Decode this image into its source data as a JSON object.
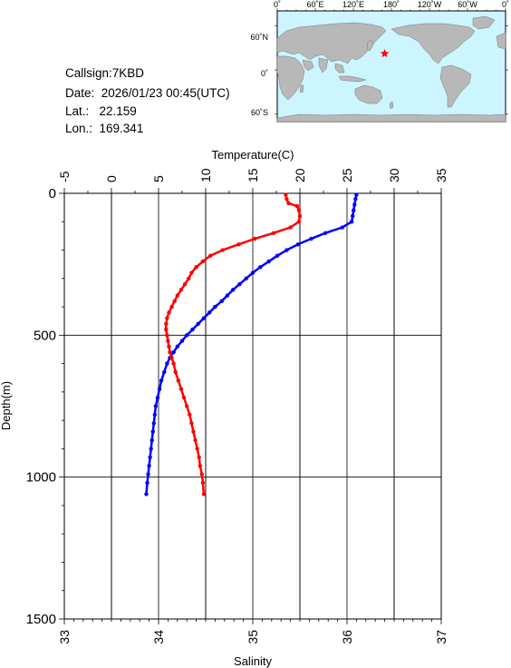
{
  "info": {
    "callsign": "Callsign:7KBD",
    "date": "Date:  2026/01/23 00:45(UTC)",
    "lat": "Lat.:   22.159",
    "lon": "Lon.:  169.341"
  },
  "map": {
    "top_ticks": [
      "0˚",
      "60˚E",
      "120˚E",
      "180˚",
      "120˚W",
      "60˚W",
      "0˚"
    ],
    "lat_ticks": [
      "60˚N",
      "0˚",
      "60˚S"
    ],
    "ocean_color": "#ccf5ff",
    "land_color": "#b8b8b8",
    "marker_color": "#ff0000",
    "marker": {
      "lon": 169.341,
      "lat": 22.159
    }
  },
  "chart_data": {
    "type": "line",
    "top_axis": {
      "label": "Temperature(C)",
      "ticks": [
        "-5",
        "0",
        "5",
        "10",
        "15",
        "20",
        "25",
        "30",
        "35"
      ],
      "range": [
        -5,
        35
      ]
    },
    "bottom_axis": {
      "label": "Salinity",
      "ticks": [
        "33",
        "34",
        "35",
        "36",
        "37"
      ],
      "range": [
        33,
        37
      ]
    },
    "y_axis": {
      "label": "Depth(m)",
      "ticks": [
        "0",
        "500",
        "1000",
        "1500"
      ],
      "range": [
        0,
        1500
      ],
      "inverted": true
    },
    "grid": true,
    "series": [
      {
        "name": "Temperature",
        "axis": "top",
        "color": "#0000ff",
        "points": [
          [
            26.0,
            5
          ],
          [
            25.9,
            20
          ],
          [
            25.8,
            40
          ],
          [
            25.7,
            60
          ],
          [
            25.6,
            80
          ],
          [
            25.5,
            100
          ],
          [
            24.5,
            120
          ],
          [
            22.7,
            140
          ],
          [
            21.2,
            160
          ],
          [
            19.8,
            180
          ],
          [
            18.6,
            200
          ],
          [
            17.6,
            220
          ],
          [
            16.7,
            240
          ],
          [
            15.8,
            260
          ],
          [
            15.0,
            280
          ],
          [
            14.3,
            300
          ],
          [
            13.6,
            320
          ],
          [
            12.9,
            340
          ],
          [
            12.3,
            360
          ],
          [
            11.7,
            380
          ],
          [
            11.0,
            400
          ],
          [
            10.4,
            420
          ],
          [
            9.8,
            440
          ],
          [
            9.2,
            460
          ],
          [
            8.6,
            480
          ],
          [
            8.0,
            500
          ],
          [
            7.5,
            520
          ],
          [
            7.0,
            540
          ],
          [
            6.6,
            560
          ],
          [
            6.2,
            580
          ],
          [
            5.9,
            600
          ],
          [
            5.6,
            630
          ],
          [
            5.3,
            660
          ],
          [
            5.1,
            690
          ],
          [
            4.9,
            720
          ],
          [
            4.7,
            750
          ],
          [
            4.6,
            780
          ],
          [
            4.5,
            810
          ],
          [
            4.4,
            840
          ],
          [
            4.3,
            870
          ],
          [
            4.2,
            900
          ],
          [
            4.1,
            930
          ],
          [
            4.0,
            960
          ],
          [
            3.9,
            990
          ],
          [
            3.8,
            1020
          ],
          [
            3.7,
            1060
          ]
        ]
      },
      {
        "name": "Salinity",
        "axis": "bottom",
        "color": "#ff0000",
        "points": [
          [
            35.35,
            5
          ],
          [
            35.36,
            20
          ],
          [
            35.38,
            35
          ],
          [
            35.47,
            45
          ],
          [
            35.49,
            60
          ],
          [
            35.5,
            80
          ],
          [
            35.49,
            100
          ],
          [
            35.4,
            120
          ],
          [
            35.22,
            140
          ],
          [
            35.02,
            160
          ],
          [
            34.85,
            180
          ],
          [
            34.68,
            200
          ],
          [
            34.55,
            220
          ],
          [
            34.47,
            240
          ],
          [
            34.4,
            260
          ],
          [
            34.35,
            280
          ],
          [
            34.32,
            300
          ],
          [
            34.28,
            320
          ],
          [
            34.24,
            340
          ],
          [
            34.2,
            360
          ],
          [
            34.17,
            380
          ],
          [
            34.14,
            400
          ],
          [
            34.11,
            420
          ],
          [
            34.09,
            440
          ],
          [
            34.08,
            460
          ],
          [
            34.08,
            480
          ],
          [
            34.09,
            500
          ],
          [
            34.1,
            520
          ],
          [
            34.11,
            540
          ],
          [
            34.12,
            560
          ],
          [
            34.14,
            580
          ],
          [
            34.16,
            600
          ],
          [
            34.18,
            630
          ],
          [
            34.21,
            660
          ],
          [
            34.24,
            690
          ],
          [
            34.27,
            720
          ],
          [
            34.3,
            750
          ],
          [
            34.33,
            780
          ],
          [
            34.35,
            810
          ],
          [
            34.37,
            840
          ],
          [
            34.39,
            870
          ],
          [
            34.41,
            900
          ],
          [
            34.43,
            930
          ],
          [
            34.44,
            960
          ],
          [
            34.46,
            990
          ],
          [
            34.47,
            1020
          ],
          [
            34.48,
            1060
          ]
        ]
      }
    ]
  }
}
